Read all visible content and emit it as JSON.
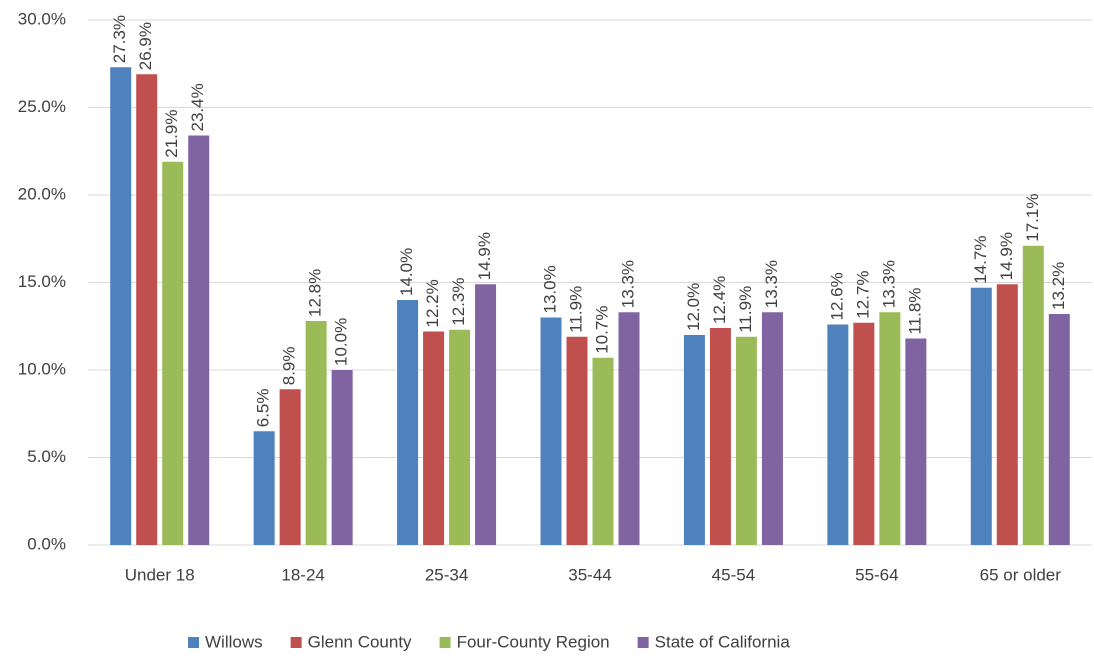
{
  "chart_data": {
    "type": "bar",
    "categories": [
      "Under 18",
      "18-24",
      "25-34",
      "35-44",
      "45-54",
      "55-64",
      "65 or older"
    ],
    "series": [
      {
        "name": "Willows",
        "color": "#4f81bd",
        "values": [
          27.3,
          6.5,
          14.0,
          13.0,
          12.0,
          12.6,
          14.7
        ],
        "value_labels": [
          "27.3%",
          "6.5%",
          "14.0%",
          "13.0%",
          "12.0%",
          "12.6%",
          "14.7%"
        ]
      },
      {
        "name": "Glenn County",
        "color": "#c0504d",
        "values": [
          26.9,
          8.9,
          12.2,
          11.9,
          12.4,
          12.7,
          14.9
        ],
        "value_labels": [
          "26.9%",
          "8.9%",
          "12.2%",
          "11.9%",
          "12.4%",
          "12.7%",
          "14.9%"
        ]
      },
      {
        "name": "Four-County Region",
        "color": "#9bbb59",
        "values": [
          21.9,
          12.8,
          12.3,
          10.7,
          11.9,
          13.3,
          17.1
        ],
        "value_labels": [
          "21.9%",
          "12.8%",
          "12.3%",
          "10.7%",
          "11.9%",
          "13.3%",
          "17.1%"
        ]
      },
      {
        "name": "State of California",
        "color": "#8064a2",
        "values": [
          23.4,
          10.0,
          14.9,
          13.3,
          13.3,
          11.8,
          13.2
        ],
        "value_labels": [
          "23.4%",
          "10.0%",
          "14.9%",
          "13.3%",
          "13.3%",
          "11.8%",
          "13.2%"
        ]
      }
    ],
    "ylim": [
      0,
      30
    ],
    "yticks": [
      {
        "value": 0,
        "label": "0.0%"
      },
      {
        "value": 5,
        "label": "5.0%"
      },
      {
        "value": 10,
        "label": "10.0%"
      },
      {
        "value": 15,
        "label": "15.0%"
      },
      {
        "value": 20,
        "label": "20.0%"
      },
      {
        "value": 25,
        "label": "25.0%"
      },
      {
        "value": 30,
        "label": "30.0%"
      }
    ],
    "grid": true,
    "legend": "bottom"
  }
}
